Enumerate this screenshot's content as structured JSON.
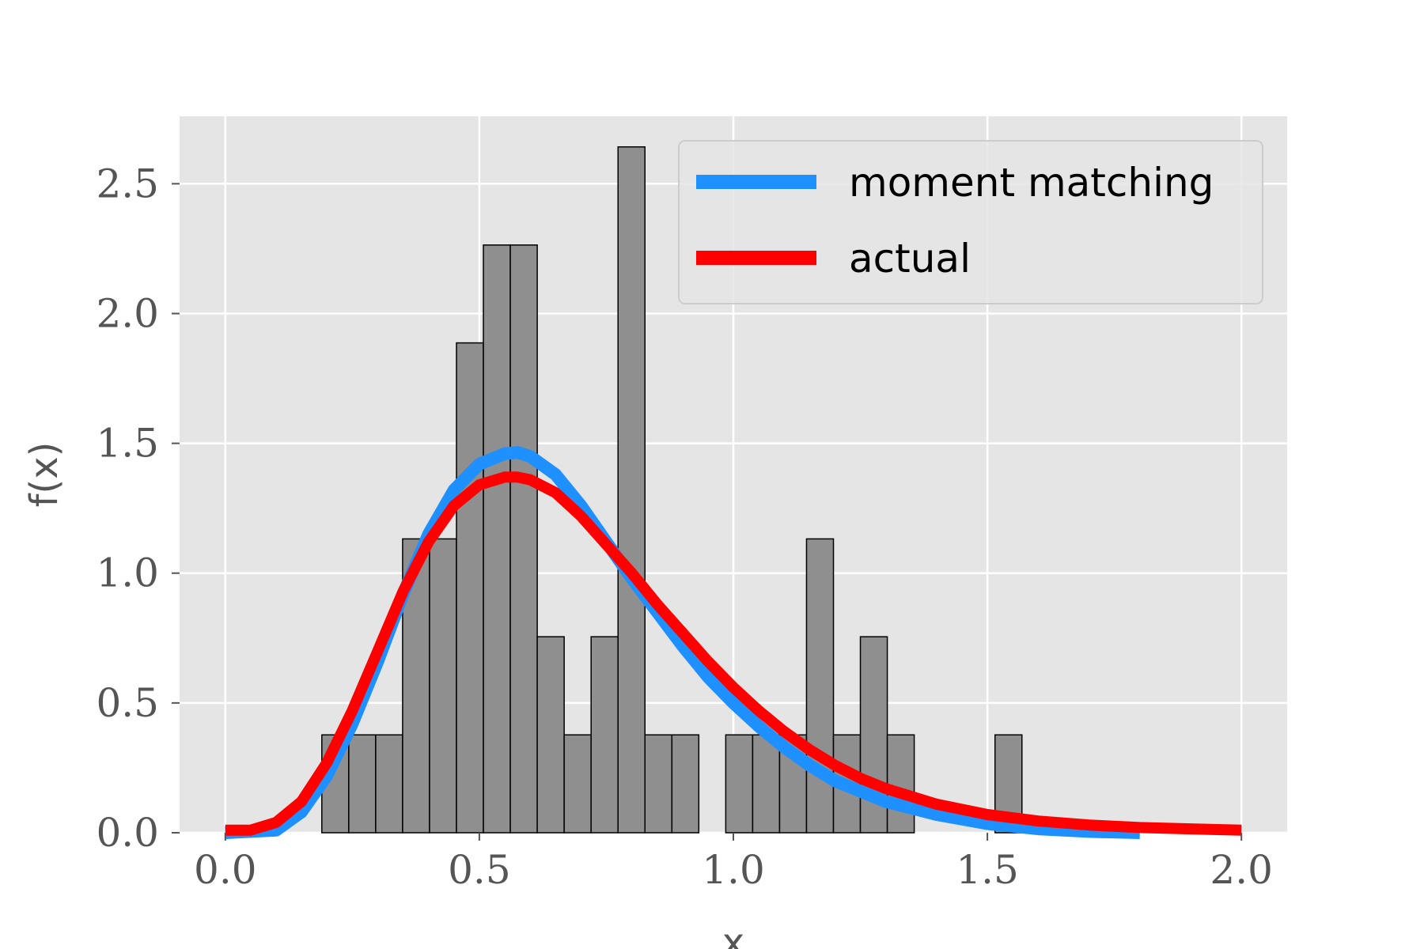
{
  "chart_data": {
    "type": "bar",
    "xlabel": "x",
    "ylabel": "f(x)",
    "xlim": [
      -0.09,
      2.09
    ],
    "ylim": [
      0,
      2.76
    ],
    "grid": true,
    "legend_placement": "top-right",
    "x_ticks": [
      0.0,
      0.5,
      1.0,
      1.5,
      2.0
    ],
    "x_tick_labels": [
      "0.0",
      "0.5",
      "1.0",
      "1.5",
      "2.0"
    ],
    "y_ticks": [
      0.0,
      0.5,
      1.0,
      1.5,
      2.0,
      2.5
    ],
    "y_tick_labels": [
      "0.0",
      "0.5",
      "1.0",
      "1.5",
      "2.0",
      "2.5"
    ],
    "histogram": {
      "bin_start": 0.19,
      "bin_width": 0.053,
      "values": [
        0.377,
        0.377,
        0.377,
        1.132,
        1.132,
        1.887,
        2.264,
        2.264,
        0.755,
        0.377,
        0.755,
        2.642,
        0.377,
        0.377,
        0,
        0.377,
        0.377,
        0.377,
        1.132,
        0.377,
        0.755,
        0.377,
        0,
        0,
        0,
        0.377
      ],
      "fill": "#8f8f8f",
      "edge": "#000000"
    },
    "series": [
      {
        "name": "moment matching",
        "color": "#1f90ff",
        "x": [
          0.0,
          0.1,
          0.15,
          0.2,
          0.25,
          0.3,
          0.35,
          0.4,
          0.45,
          0.5,
          0.55,
          0.575,
          0.6,
          0.65,
          0.7,
          0.75,
          0.8,
          0.85,
          0.9,
          0.95,
          1.0,
          1.05,
          1.1,
          1.15,
          1.2,
          1.25,
          1.3,
          1.4,
          1.5,
          1.6,
          1.7,
          1.8
        ],
        "y": [
          0.0,
          0.01,
          0.08,
          0.22,
          0.42,
          0.66,
          0.92,
          1.15,
          1.32,
          1.42,
          1.46,
          1.465,
          1.45,
          1.38,
          1.26,
          1.12,
          0.98,
          0.85,
          0.72,
          0.6,
          0.5,
          0.41,
          0.33,
          0.26,
          0.2,
          0.16,
          0.12,
          0.07,
          0.035,
          0.015,
          0.005,
          0.0
        ]
      },
      {
        "name": "actual",
        "color": "#ff0000",
        "x": [
          0.0,
          0.05,
          0.1,
          0.15,
          0.2,
          0.25,
          0.3,
          0.35,
          0.4,
          0.45,
          0.5,
          0.55,
          0.575,
          0.6,
          0.65,
          0.7,
          0.75,
          0.8,
          0.85,
          0.9,
          0.95,
          1.0,
          1.05,
          1.1,
          1.15,
          1.2,
          1.25,
          1.3,
          1.4,
          1.5,
          1.6,
          1.7,
          1.8,
          1.9,
          2.0
        ],
        "y": [
          0.01,
          0.01,
          0.04,
          0.12,
          0.27,
          0.47,
          0.7,
          0.93,
          1.12,
          1.26,
          1.34,
          1.37,
          1.37,
          1.36,
          1.31,
          1.22,
          1.11,
          1.0,
          0.88,
          0.77,
          0.66,
          0.56,
          0.47,
          0.39,
          0.32,
          0.26,
          0.21,
          0.17,
          0.11,
          0.07,
          0.045,
          0.03,
          0.02,
          0.015,
          0.01
        ]
      }
    ]
  }
}
